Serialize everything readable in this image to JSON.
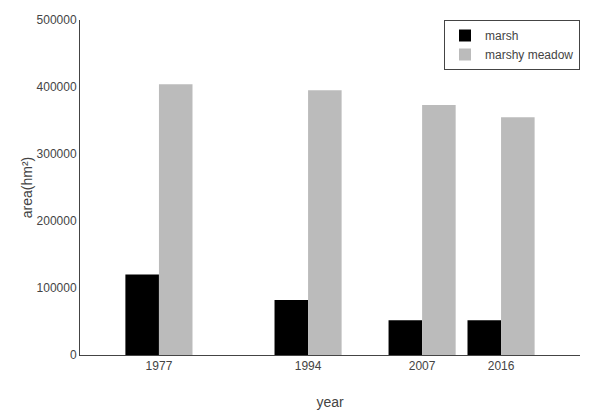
{
  "chart_data": {
    "type": "bar",
    "x": [
      1977,
      1994,
      2007,
      2016
    ],
    "series": [
      {
        "name": "marsh",
        "color": "#000000",
        "values": [
          120000,
          82000,
          52000,
          52000
        ]
      },
      {
        "name": "marshy meadow",
        "color": "#bbbbbb",
        "values": [
          404000,
          395000,
          373000,
          355000
        ]
      }
    ],
    "xlabel": "year",
    "ylabel": "area(hm²)",
    "xlim": [
      1968,
      2025
    ],
    "xticks": [
      1977,
      1994,
      2007,
      2016
    ],
    "ylim": [
      0,
      500000
    ],
    "yticks": [
      0,
      100000,
      200000,
      300000,
      400000,
      500000
    ],
    "legend": "upper right",
    "grid": false
  }
}
